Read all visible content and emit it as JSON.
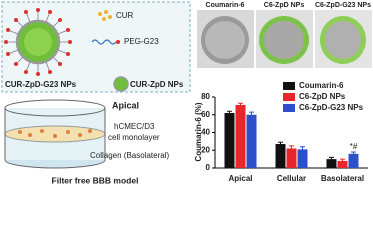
{
  "illustration": {
    "legend": [
      "CUR",
      "PEG-G23"
    ],
    "particles": [
      "CUR-ZpD-G23 NPs",
      "CUR-ZpD NPs"
    ]
  },
  "model": {
    "labels": [
      "Apical",
      "hCMEC/D3",
      "cell monolayer",
      "Collagen (Basolateral)"
    ],
    "caption": "Filter free BBB model"
  },
  "images": {
    "labels": [
      "Coumarin-6",
      "C6-ZpD NPs",
      "C6-ZpD-G23 NPs"
    ]
  },
  "chart_data": {
    "type": "bar",
    "y_label": "Coumarin-6 (%)",
    "categories": [
      "Apical",
      "Cellular",
      "Basolateral"
    ],
    "series": [
      {
        "name": "Coumarin-6",
        "color": "#111111",
        "values": [
          62,
          27,
          10
        ],
        "errors": [
          2,
          2,
          2
        ]
      },
      {
        "name": "C6-ZpD NPs",
        "color": "#e8262b",
        "values": [
          71,
          22,
          8
        ],
        "errors": [
          2,
          3,
          2
        ]
      },
      {
        "name": "C6-ZpD-G23 NPs",
        "color": "#2d4fc9",
        "values": [
          60,
          21,
          16
        ],
        "errors": [
          3,
          3,
          2
        ]
      }
    ],
    "ylim": [
      0,
      80
    ],
    "yticks": [
      0,
      20,
      40,
      60,
      80
    ],
    "legend": "upper right",
    "annotations": [
      {
        "text": "*#",
        "series": 2,
        "category": 2
      }
    ]
  }
}
